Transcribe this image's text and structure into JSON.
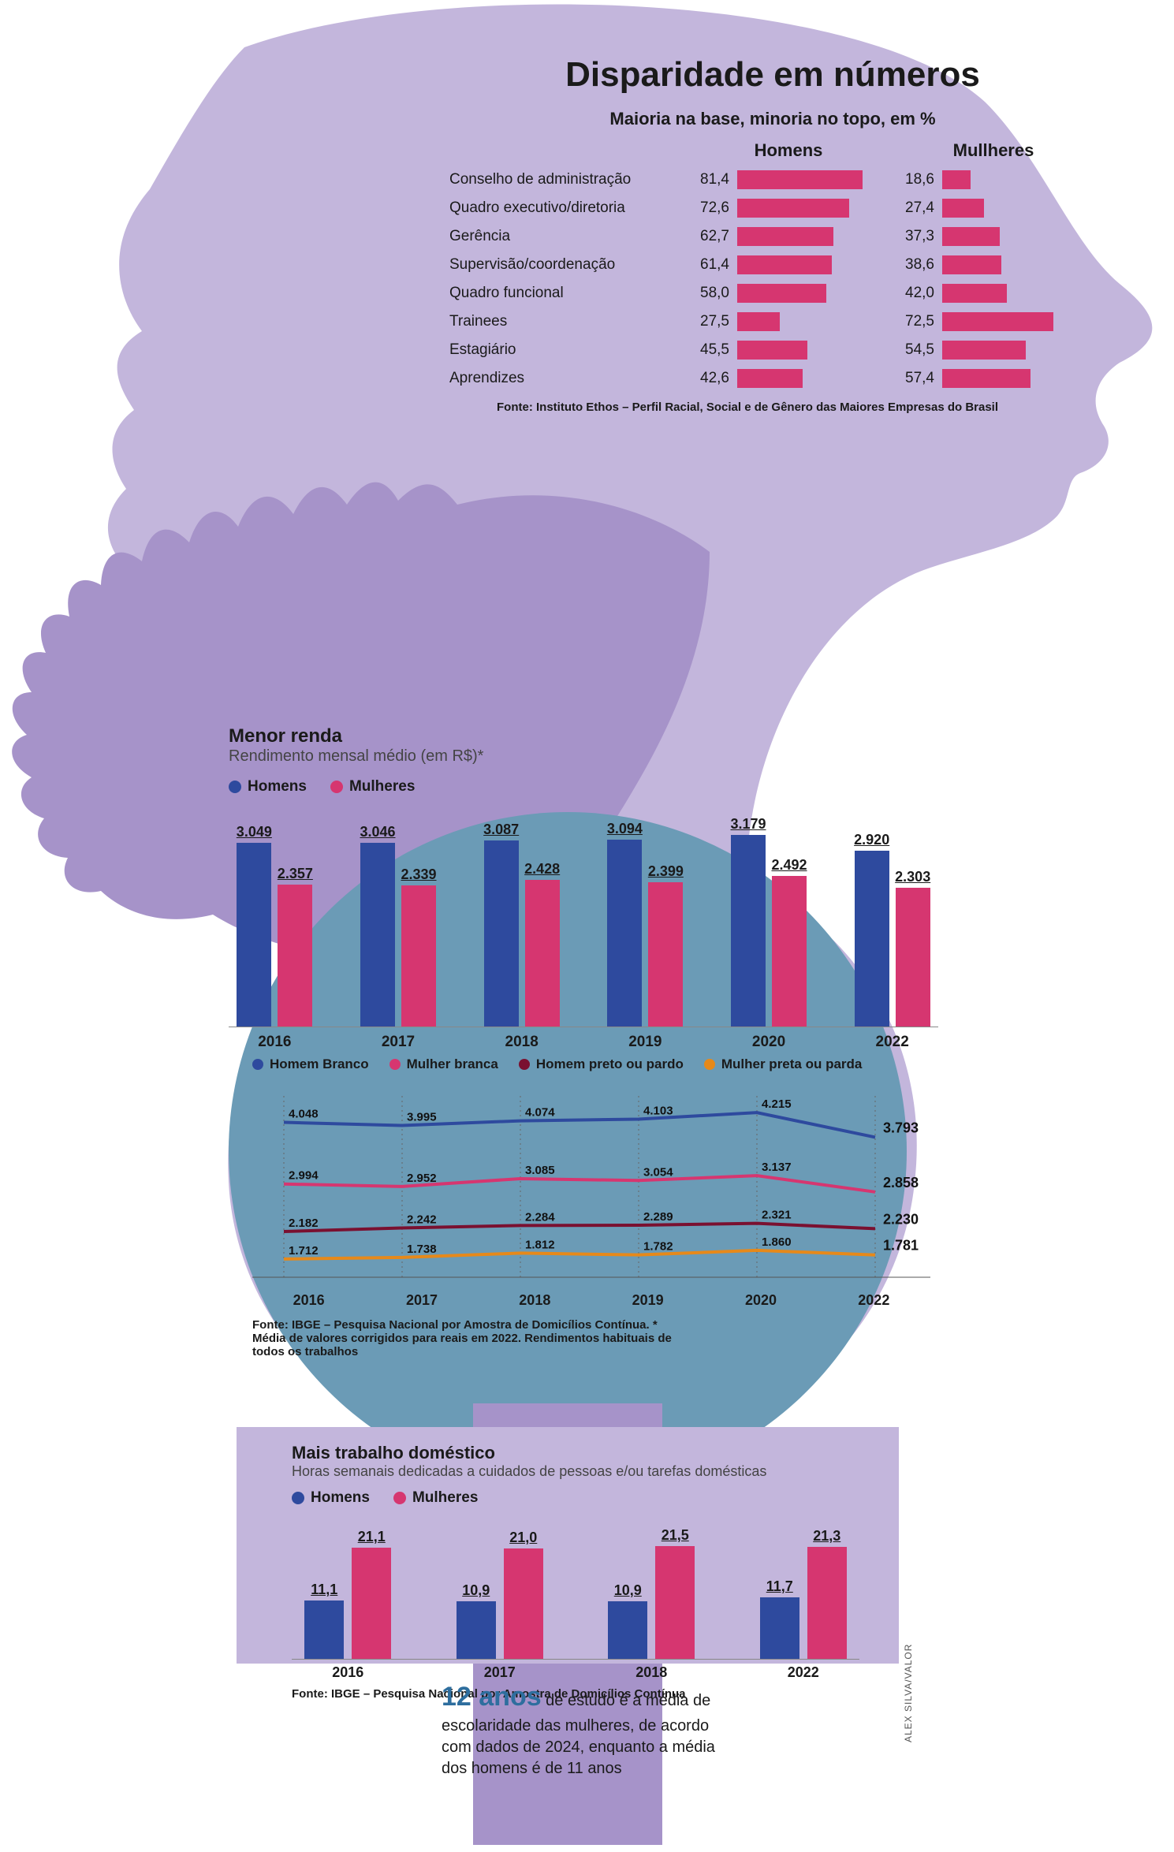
{
  "colors": {
    "bg_light": "#c3b6dc",
    "bg_mid": "#a693c9",
    "bg_dark": "#8e7fb8",
    "bg_blue": "#6b9bb6",
    "bar_pink": "#d63670",
    "bar_blue": "#2e4a9e",
    "line_hb": "#2e4a9e",
    "line_mb": "#d63670",
    "line_hp": "#7a1030",
    "line_mp": "#e6891a",
    "text": "#1a1a1a",
    "accent_blue": "#2e6e9e"
  },
  "main_title": "Disparidade em números",
  "chart1": {
    "subtitle": "Maioria na base, minoria no topo, em %",
    "header_men": "Homens",
    "header_women": "Mullheres",
    "max": 100,
    "bar_color": "#d63670",
    "rows": [
      {
        "label": "Conselho de administração",
        "m": "81,4",
        "mv": 81.4,
        "w": "18,6",
        "wv": 18.6
      },
      {
        "label": "Quadro executivo/diretoria",
        "m": "72,6",
        "mv": 72.6,
        "w": "27,4",
        "wv": 27.4
      },
      {
        "label": "Gerência",
        "m": "62,7",
        "mv": 62.7,
        "w": "37,3",
        "wv": 37.3
      },
      {
        "label": "Supervisão/coordenação",
        "m": "61,4",
        "mv": 61.4,
        "w": "38,6",
        "wv": 38.6
      },
      {
        "label": "Quadro funcional",
        "m": "58,0",
        "mv": 58.0,
        "w": "42,0",
        "wv": 42.0
      },
      {
        "label": "Trainees",
        "m": "27,5",
        "mv": 27.5,
        "w": "72,5",
        "wv": 72.5
      },
      {
        "label": "Estagiário",
        "m": "45,5",
        "mv": 45.5,
        "w": "54,5",
        "wv": 54.5
      },
      {
        "label": "Aprendizes",
        "m": "42,6",
        "mv": 42.6,
        "w": "57,4",
        "wv": 57.4
      }
    ],
    "source": "Fonte: Instituto Ethos – Perfil Racial, Social e de Gênero das Maiores Empresas do Brasil"
  },
  "chart2": {
    "title": "Menor renda",
    "subtitle": "Rendimento mensal médio (em R$)*",
    "legend_men": "Homens",
    "legend_women": "Mulheres",
    "color_men": "#2e4a9e",
    "color_women": "#d63670",
    "ymax": 3400,
    "years": [
      "2016",
      "2017",
      "2018",
      "2019",
      "2020",
      "2022"
    ],
    "men": [
      {
        "l": "3.049",
        "v": 3049
      },
      {
        "l": "3.046",
        "v": 3046
      },
      {
        "l": "3.087",
        "v": 3087
      },
      {
        "l": "3.094",
        "v": 3094
      },
      {
        "l": "3.179",
        "v": 3179
      },
      {
        "l": "2.920",
        "v": 2920
      }
    ],
    "women": [
      {
        "l": "2.357",
        "v": 2357
      },
      {
        "l": "2.339",
        "v": 2339
      },
      {
        "l": "2.428",
        "v": 2428
      },
      {
        "l": "2.399",
        "v": 2399
      },
      {
        "l": "2.492",
        "v": 2492
      },
      {
        "l": "2.303",
        "v": 2303
      }
    ]
  },
  "chart3": {
    "legend": [
      {
        "label": "Homem Branco",
        "color": "#2e4a9e",
        "key": "hb"
      },
      {
        "label": "Mulher branca",
        "color": "#d63670",
        "key": "mb"
      },
      {
        "label": "Homem preto ou pardo",
        "color": "#7a1030",
        "key": "hp"
      },
      {
        "label": "Mulher preta ou parda",
        "color": "#e6891a",
        "key": "mp"
      }
    ],
    "years": [
      "2016",
      "2017",
      "2018",
      "2019",
      "2020",
      "2022"
    ],
    "ymin": 1400,
    "ymax": 4500,
    "series": {
      "hb": [
        {
          "l": "4.048",
          "v": 4048
        },
        {
          "l": "3.995",
          "v": 3995
        },
        {
          "l": "4.074",
          "v": 4074
        },
        {
          "l": "4.103",
          "v": 4103
        },
        {
          "l": "4.215",
          "v": 4215
        },
        {
          "l": "3.793",
          "v": 3793
        }
      ],
      "mb": [
        {
          "l": "2.994",
          "v": 2994
        },
        {
          "l": "2.952",
          "v": 2952
        },
        {
          "l": "3.085",
          "v": 3085
        },
        {
          "l": "3.054",
          "v": 3054
        },
        {
          "l": "3.137",
          "v": 3137
        },
        {
          "l": "2.858",
          "v": 2858
        }
      ],
      "hp": [
        {
          "l": "2.182",
          "v": 2182
        },
        {
          "l": "2.242",
          "v": 2242
        },
        {
          "l": "2.284",
          "v": 2284
        },
        {
          "l": "2.289",
          "v": 2289
        },
        {
          "l": "2.321",
          "v": 2321
        },
        {
          "l": "2.230",
          "v": 2230
        }
      ],
      "mp": [
        {
          "l": "1.712",
          "v": 1712
        },
        {
          "l": "1.738",
          "v": 1738
        },
        {
          "l": "1.812",
          "v": 1812
        },
        {
          "l": "1.782",
          "v": 1782
        },
        {
          "l": "1.860",
          "v": 1860
        },
        {
          "l": "1.781",
          "v": 1781
        }
      ]
    },
    "source": "Fonte: IBGE – Pesquisa Nacional por Amostra de Domicílios Contínua. * Média de valores corrigidos para reais em 2022. Rendimentos habituais de todos os trabalhos"
  },
  "chart4": {
    "title": "Mais trabalho doméstico",
    "subtitle": "Horas semanais dedicadas a cuidados de pessoas e/ou tarefas domésticas",
    "legend_men": "Homens",
    "legend_women": "Mulheres",
    "color_men": "#2e4a9e",
    "color_women": "#d63670",
    "ymax": 24,
    "years": [
      "2016",
      "2017",
      "2018",
      "2022"
    ],
    "men": [
      {
        "l": "11,1",
        "v": 11.1
      },
      {
        "l": "10,9",
        "v": 10.9
      },
      {
        "l": "10,9",
        "v": 10.9
      },
      {
        "l": "11,7",
        "v": 11.7
      }
    ],
    "women": [
      {
        "l": "21,1",
        "v": 21.1
      },
      {
        "l": "21,0",
        "v": 21.0
      },
      {
        "l": "21,5",
        "v": 21.5
      },
      {
        "l": "21,3",
        "v": 21.3
      }
    ],
    "source": "Fonte: IBGE – Pesquisa Nacional por Amostra de Domicílios Contínua"
  },
  "factoid": {
    "big": "12 anos",
    "rest": " de estudo é a média de escolaridade das mulheres, de acordo com dados de 2024, enquanto a média dos homens é de 11 anos"
  },
  "credit": "ALEX SILVA/VALOR"
}
